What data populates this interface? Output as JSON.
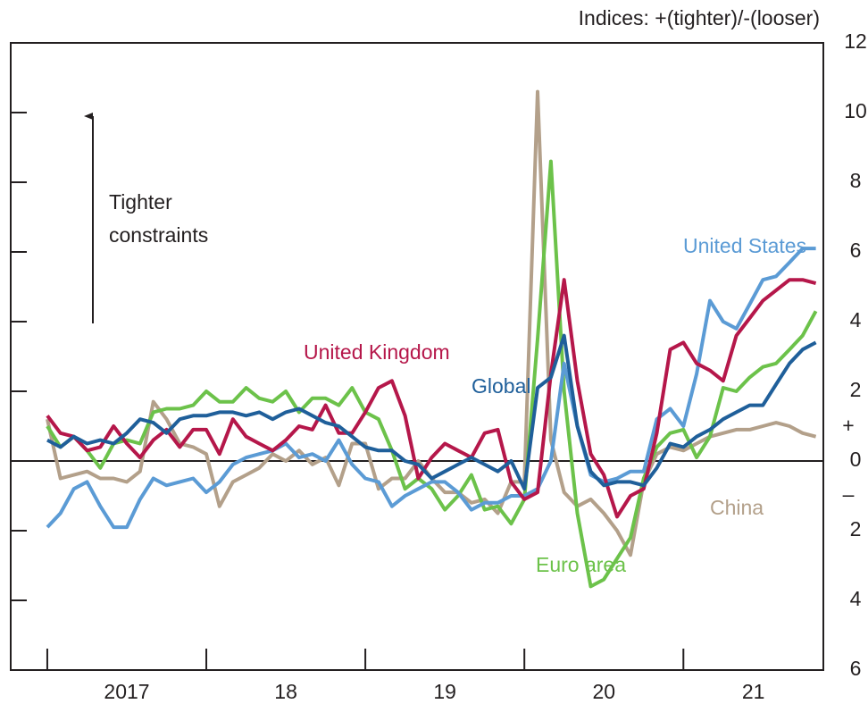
{
  "chart_data": {
    "type": "line",
    "axis_title": "Indices: +(tighter)/-(looser)",
    "annotation": "Tighter constraints",
    "axis_signs": [
      "+",
      "–"
    ],
    "x": [
      2017,
      2017.083,
      2017.167,
      2017.25,
      2017.333,
      2017.417,
      2017.5,
      2017.583,
      2017.667,
      2017.75,
      2017.833,
      2017.917,
      2018,
      2018.083,
      2018.167,
      2018.25,
      2018.333,
      2018.417,
      2018.5,
      2018.583,
      2018.667,
      2018.75,
      2018.833,
      2018.917,
      2019,
      2019.083,
      2019.167,
      2019.25,
      2019.333,
      2019.417,
      2019.5,
      2019.583,
      2019.667,
      2019.75,
      2019.833,
      2019.917,
      2020,
      2020.083,
      2020.167,
      2020.25,
      2020.333,
      2020.417,
      2020.5,
      2020.583,
      2020.667,
      2020.75,
      2020.833,
      2020.917,
      2021,
      2021.083,
      2021.167,
      2021.25,
      2021.333,
      2021.417,
      2021.5,
      2021.583,
      2021.667,
      2021.75,
      2021.833
    ],
    "xlim": [
      2016.77,
      2021.88
    ],
    "xticks": [
      2017,
      2018,
      2019,
      2020,
      2021
    ],
    "xtick_labels": [
      "2017",
      "18",
      "19",
      "20",
      "21"
    ],
    "ylim": [
      -6,
      12
    ],
    "yticks": [
      {
        "value": -6,
        "label": "6"
      },
      {
        "value": -4,
        "label": "4"
      },
      {
        "value": -2,
        "label": "2"
      },
      0,
      2,
      4,
      6,
      8,
      10,
      12
    ],
    "grid": false,
    "series": [
      {
        "name": "China",
        "color": "#b3a08a",
        "values": [
          1.2,
          -0.5,
          -0.4,
          -0.3,
          -0.5,
          -0.5,
          -0.6,
          -0.3,
          1.7,
          1.2,
          0.5,
          0.4,
          0.2,
          -1.3,
          -0.6,
          -0.4,
          -0.2,
          0.2,
          0.0,
          0.3,
          -0.1,
          0.1,
          -0.7,
          0.5,
          0.5,
          -0.8,
          -0.5,
          -0.5,
          0.0,
          -0.5,
          -0.9,
          -0.9,
          -1.2,
          -1.1,
          -1.5,
          -0.6,
          -0.6,
          10.6,
          0.6,
          -0.9,
          -1.3,
          -1.1,
          -1.5,
          -2.0,
          -2.7,
          -0.6,
          0.2,
          0.4,
          0.3,
          0.5,
          0.7,
          0.8,
          0.9,
          0.9,
          1.0,
          1.1,
          1.0,
          0.8,
          0.7
        ]
      },
      {
        "name": "Euro area",
        "color": "#6cc24a",
        "values": [
          1.0,
          0.4,
          0.7,
          0.3,
          -0.2,
          0.5,
          0.6,
          0.5,
          1.4,
          1.5,
          1.5,
          1.6,
          2.0,
          1.7,
          1.7,
          2.1,
          1.8,
          1.7,
          2.0,
          1.4,
          1.8,
          1.8,
          1.6,
          2.1,
          1.4,
          1.2,
          0.3,
          -0.8,
          -0.5,
          -0.8,
          -1.4,
          -1.0,
          -0.4,
          -1.4,
          -1.3,
          -1.8,
          -1.1,
          3.5,
          8.6,
          2.0,
          -1.5,
          -3.6,
          -3.4,
          -2.8,
          -2.2,
          -0.5,
          0.4,
          0.8,
          0.9,
          0.1,
          0.7,
          2.1,
          2.0,
          2.4,
          2.7,
          2.8,
          3.2,
          3.6,
          4.3
        ]
      },
      {
        "name": "United States",
        "color": "#5b9bd5",
        "values": [
          -1.9,
          -1.5,
          -0.8,
          -0.6,
          -1.3,
          -1.9,
          -1.9,
          -1.1,
          -0.5,
          -0.7,
          -0.6,
          -0.5,
          -0.9,
          -0.6,
          -0.1,
          0.1,
          0.2,
          0.3,
          0.5,
          0.1,
          0.2,
          0.0,
          0.6,
          -0.1,
          -0.5,
          -0.6,
          -1.3,
          -1.0,
          -0.8,
          -0.6,
          -0.6,
          -0.9,
          -1.4,
          -1.2,
          -1.2,
          -1.0,
          -1.0,
          -0.8,
          0.0,
          2.8,
          1.0,
          -0.4,
          -0.6,
          -0.5,
          -0.3,
          -0.3,
          1.2,
          1.5,
          1.0,
          2.5,
          4.6,
          4.0,
          3.8,
          4.5,
          5.2,
          5.3,
          5.7,
          6.1,
          6.1
        ]
      },
      {
        "name": "United Kingdom",
        "color": "#b5174a",
        "values": [
          1.3,
          0.8,
          0.7,
          0.3,
          0.4,
          1.0,
          0.5,
          0.1,
          0.6,
          0.9,
          0.4,
          0.9,
          0.9,
          0.2,
          1.2,
          0.7,
          0.5,
          0.3,
          0.6,
          1.0,
          0.9,
          1.6,
          0.8,
          0.8,
          1.4,
          2.1,
          2.3,
          1.3,
          -0.5,
          0.1,
          0.5,
          0.3,
          0.1,
          0.8,
          0.9,
          -0.6,
          -1.1,
          -0.9,
          2.5,
          5.2,
          2.3,
          0.2,
          -0.4,
          -1.6,
          -1.0,
          -0.8,
          0.8,
          3.2,
          3.4,
          2.8,
          2.6,
          2.3,
          3.6,
          4.1,
          4.6,
          4.9,
          5.2,
          5.2,
          5.1
        ]
      },
      {
        "name": "Global",
        "color": "#1f5f9a",
        "values": [
          0.6,
          0.4,
          0.7,
          0.5,
          0.6,
          0.5,
          0.8,
          1.2,
          1.1,
          0.8,
          1.2,
          1.3,
          1.3,
          1.4,
          1.4,
          1.3,
          1.4,
          1.2,
          1.4,
          1.5,
          1.3,
          1.1,
          1.0,
          0.7,
          0.4,
          0.3,
          0.3,
          0.0,
          -0.1,
          -0.5,
          -0.3,
          -0.1,
          0.1,
          -0.1,
          -0.3,
          0.0,
          -0.8,
          2.1,
          2.4,
          3.6,
          1.0,
          -0.3,
          -0.7,
          -0.6,
          -0.6,
          -0.7,
          -0.2,
          0.5,
          0.4,
          0.7,
          0.9,
          1.2,
          1.4,
          1.6,
          1.6,
          2.2,
          2.8,
          3.2,
          3.4
        ]
      }
    ]
  }
}
